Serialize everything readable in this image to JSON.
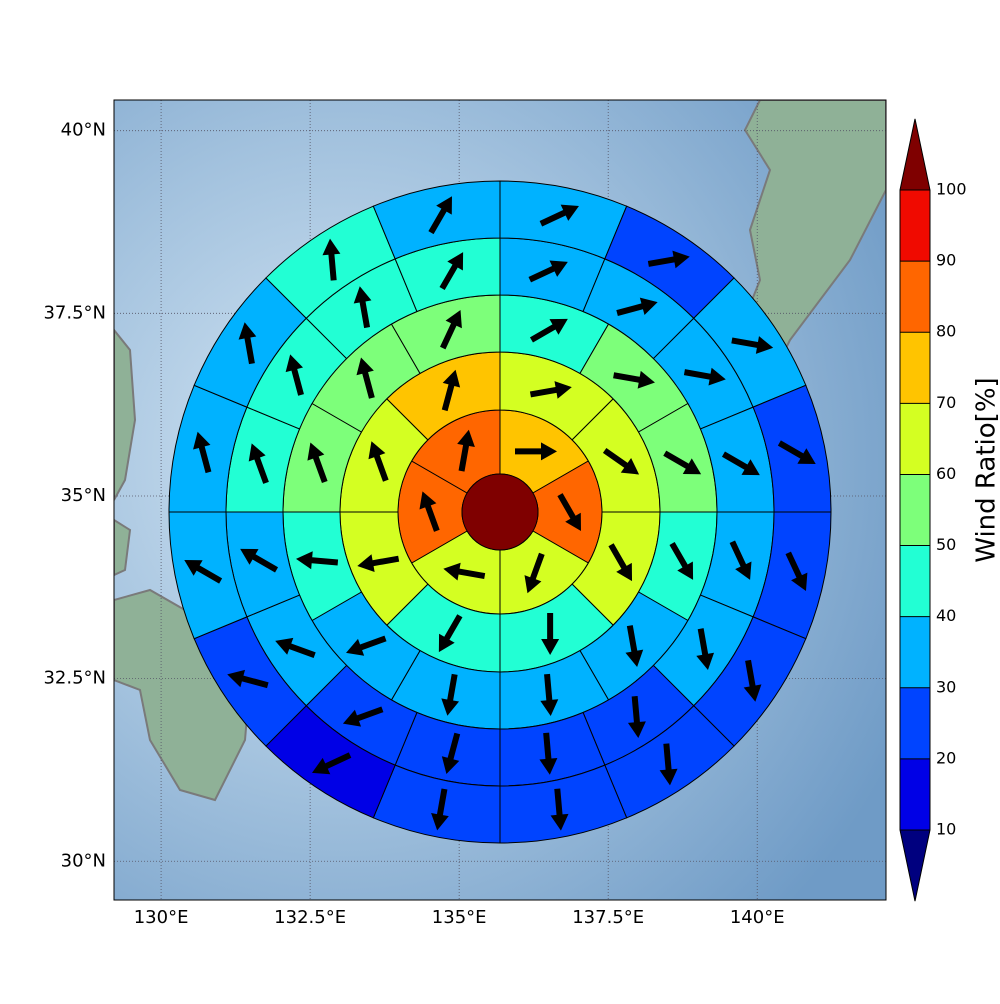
{
  "chart_data": {
    "type": "polar-sectors",
    "xlim": [
      129.21,
      142.16
    ],
    "ylim": [
      29.47,
      40.42
    ],
    "xticks": [
      {
        "value": 130,
        "label": "130°E"
      },
      {
        "value": 132.5,
        "label": "132.5°E"
      },
      {
        "value": 135,
        "label": "135°E"
      },
      {
        "value": 137.5,
        "label": "137.5°E"
      },
      {
        "value": 140,
        "label": "140°E"
      }
    ],
    "yticks": [
      {
        "value": 30,
        "label": "30°N"
      },
      {
        "value": 32.5,
        "label": "32.5°N"
      },
      {
        "value": 35,
        "label": "35°N"
      },
      {
        "value": 37.5,
        "label": "37.5°N"
      },
      {
        "value": 40,
        "label": "40°N"
      }
    ],
    "grid": true,
    "center": {
      "value": 105
    },
    "rings": [
      {
        "values": [
          75,
          85,
          65,
          65,
          85,
          85
        ],
        "directions": [
          90,
          150,
          200,
          280,
          340,
          10
        ]
      },
      {
        "values": [
          65,
          65,
          65,
          45,
          45,
          65,
          65,
          75
        ],
        "directions": [
          80,
          125,
          150,
          180,
          210,
          260,
          340,
          15
        ]
      },
      {
        "values": [
          45,
          55,
          55,
          45,
          35,
          35,
          35,
          35,
          45,
          55,
          55,
          55
        ],
        "directions": [
          60,
          100,
          120,
          150,
          170,
          175,
          190,
          250,
          275,
          340,
          345,
          25
        ]
      },
      {
        "values": [
          35,
          35,
          35,
          35,
          35,
          35,
          25,
          25,
          25,
          25,
          35,
          35,
          45,
          45,
          45,
          45
        ],
        "directions": [
          65,
          75,
          100,
          120,
          155,
          170,
          175,
          175,
          195,
          250,
          290,
          300,
          340,
          345,
          350,
          30
        ]
      },
      {
        "values": [
          35,
          25,
          35,
          25,
          25,
          25,
          25,
          25,
          25,
          15,
          25,
          35,
          35,
          35,
          45,
          35
        ],
        "directions": [
          65,
          80,
          100,
          120,
          155,
          170,
          175,
          175,
          190,
          245,
          285,
          300,
          345,
          350,
          355,
          30
        ]
      }
    ],
    "colorbar": {
      "label": "Wind Ratio[%]",
      "levels": [
        10,
        20,
        30,
        40,
        50,
        60,
        70,
        80,
        90,
        100
      ],
      "colors": [
        "#00007f",
        "#0000e6",
        "#0044ff",
        "#00b2ff",
        "#22ffd4",
        "#7dff7a",
        "#d4ff22",
        "#ffc400",
        "#ff6600",
        "#f00a00",
        "#7f0000"
      ]
    }
  }
}
